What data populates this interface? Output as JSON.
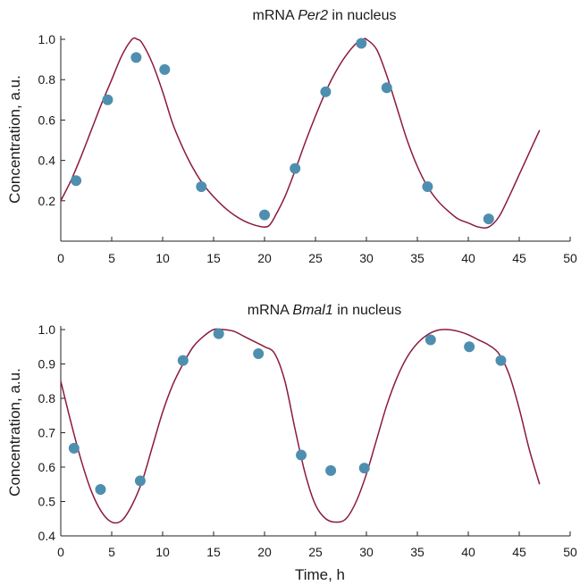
{
  "chart_data": [
    {
      "type": "scatter",
      "title_prefix": "mRNA ",
      "title_italic": "Per2",
      "title_suffix": " in nucleus",
      "xlabel": "",
      "ylabel": "Concentration, a.u.",
      "xlim": [
        0,
        50
      ],
      "ylim": [
        0,
        1.0
      ],
      "xticks": [
        0,
        5,
        10,
        15,
        20,
        25,
        30,
        35,
        40,
        45,
        50
      ],
      "xtick_labels": [
        "0",
        "5",
        "10",
        "15",
        "20",
        "25",
        "30",
        "35",
        "40",
        "45",
        "50"
      ],
      "yticks": [
        0.2,
        0.4,
        0.6,
        0.8,
        1.0
      ],
      "ytick_labels": [
        "0.2",
        "0.4",
        "0.6",
        "0.8",
        "1.0"
      ],
      "points": [
        {
          "x": 1.5,
          "y": 0.3
        },
        {
          "x": 4.6,
          "y": 0.7
        },
        {
          "x": 7.4,
          "y": 0.91
        },
        {
          "x": 10.2,
          "y": 0.85
        },
        {
          "x": 13.8,
          "y": 0.27
        },
        {
          "x": 20.0,
          "y": 0.13
        },
        {
          "x": 23.0,
          "y": 0.36
        },
        {
          "x": 26.0,
          "y": 0.74
        },
        {
          "x": 29.5,
          "y": 0.98
        },
        {
          "x": 32.0,
          "y": 0.76
        },
        {
          "x": 36.0,
          "y": 0.27
        },
        {
          "x": 42.0,
          "y": 0.11
        }
      ],
      "curve": [
        [
          0,
          0.2
        ],
        [
          1,
          0.3
        ],
        [
          2,
          0.42
        ],
        [
          3,
          0.55
        ],
        [
          4,
          0.68
        ],
        [
          5,
          0.8
        ],
        [
          6,
          0.92
        ],
        [
          7,
          1.0
        ],
        [
          7.5,
          1.0
        ],
        [
          8,
          0.98
        ],
        [
          9,
          0.88
        ],
        [
          10,
          0.74
        ],
        [
          11,
          0.58
        ],
        [
          12,
          0.46
        ],
        [
          13,
          0.36
        ],
        [
          14,
          0.28
        ],
        [
          15,
          0.22
        ],
        [
          16,
          0.17
        ],
        [
          17,
          0.13
        ],
        [
          18,
          0.1
        ],
        [
          19,
          0.08
        ],
        [
          20,
          0.07
        ],
        [
          20.5,
          0.08
        ],
        [
          21,
          0.12
        ],
        [
          22,
          0.22
        ],
        [
          23,
          0.35
        ],
        [
          24,
          0.49
        ],
        [
          25,
          0.62
        ],
        [
          26,
          0.74
        ],
        [
          27,
          0.84
        ],
        [
          28,
          0.92
        ],
        [
          29,
          0.98
        ],
        [
          29.7,
          1.0
        ],
        [
          30,
          1.0
        ],
        [
          31,
          0.95
        ],
        [
          32,
          0.82
        ],
        [
          33,
          0.66
        ],
        [
          34,
          0.5
        ],
        [
          35,
          0.37
        ],
        [
          36,
          0.27
        ],
        [
          37,
          0.2
        ],
        [
          38,
          0.15
        ],
        [
          39,
          0.11
        ],
        [
          40,
          0.09
        ],
        [
          41,
          0.07
        ],
        [
          42,
          0.07
        ],
        [
          43,
          0.12
        ],
        [
          44,
          0.22
        ],
        [
          45,
          0.33
        ],
        [
          46,
          0.44
        ],
        [
          47,
          0.55
        ]
      ],
      "series_color": "#8b1a3c",
      "point_color": "#4e8fb0"
    },
    {
      "type": "scatter",
      "title_prefix": "mRNA ",
      "title_italic": "Bmal1",
      "title_suffix": " in nucleus",
      "xlabel": "Time, h",
      "ylabel": "Concentration, a.u.",
      "xlim": [
        0,
        50
      ],
      "ylim": [
        0.4,
        1.0
      ],
      "xticks": [
        0,
        5,
        10,
        15,
        20,
        25,
        30,
        35,
        40,
        45,
        50
      ],
      "xtick_labels": [
        "0",
        "5",
        "10",
        "15",
        "20",
        "25",
        "30",
        "35",
        "40",
        "45",
        "50"
      ],
      "yticks": [
        0.4,
        0.5,
        0.6,
        0.7,
        0.8,
        0.9,
        1.0
      ],
      "ytick_labels": [
        "0.4",
        "0.5",
        "0.6",
        "0.7",
        "0.8",
        "0.9",
        "1.0"
      ],
      "points": [
        {
          "x": 1.3,
          "y": 0.655
        },
        {
          "x": 3.9,
          "y": 0.535
        },
        {
          "x": 7.8,
          "y": 0.56
        },
        {
          "x": 12.0,
          "y": 0.91
        },
        {
          "x": 15.5,
          "y": 0.988
        },
        {
          "x": 19.4,
          "y": 0.93
        },
        {
          "x": 23.6,
          "y": 0.635
        },
        {
          "x": 26.5,
          "y": 0.59
        },
        {
          "x": 29.8,
          "y": 0.597
        },
        {
          "x": 36.3,
          "y": 0.97
        },
        {
          "x": 40.1,
          "y": 0.95
        },
        {
          "x": 43.2,
          "y": 0.91
        }
      ],
      "curve": [
        [
          0,
          0.85
        ],
        [
          1,
          0.73
        ],
        [
          2,
          0.62
        ],
        [
          3,
          0.53
        ],
        [
          4,
          0.47
        ],
        [
          5,
          0.44
        ],
        [
          6,
          0.445
        ],
        [
          7,
          0.49
        ],
        [
          8,
          0.56
        ],
        [
          9,
          0.66
        ],
        [
          10,
          0.76
        ],
        [
          11,
          0.84
        ],
        [
          12,
          0.9
        ],
        [
          13,
          0.95
        ],
        [
          14,
          0.98
        ],
        [
          15,
          1.0
        ],
        [
          16,
          1.0
        ],
        [
          17,
          0.995
        ],
        [
          18,
          0.98
        ],
        [
          19,
          0.965
        ],
        [
          20,
          0.95
        ],
        [
          21,
          0.93
        ],
        [
          22,
          0.85
        ],
        [
          23,
          0.71
        ],
        [
          24,
          0.58
        ],
        [
          25,
          0.49
        ],
        [
          26,
          0.45
        ],
        [
          27,
          0.44
        ],
        [
          28,
          0.45
        ],
        [
          29,
          0.5
        ],
        [
          30,
          0.58
        ],
        [
          31,
          0.68
        ],
        [
          32,
          0.78
        ],
        [
          33,
          0.86
        ],
        [
          34,
          0.92
        ],
        [
          35,
          0.96
        ],
        [
          36,
          0.985
        ],
        [
          37,
          0.998
        ],
        [
          38,
          1.0
        ],
        [
          39,
          0.995
        ],
        [
          40,
          0.985
        ],
        [
          41,
          0.97
        ],
        [
          42,
          0.955
        ],
        [
          43,
          0.93
        ],
        [
          44,
          0.87
        ],
        [
          45,
          0.77
        ],
        [
          46,
          0.65
        ],
        [
          47,
          0.55
        ]
      ],
      "series_color": "#8b1a3c",
      "point_color": "#4e8fb0"
    }
  ]
}
